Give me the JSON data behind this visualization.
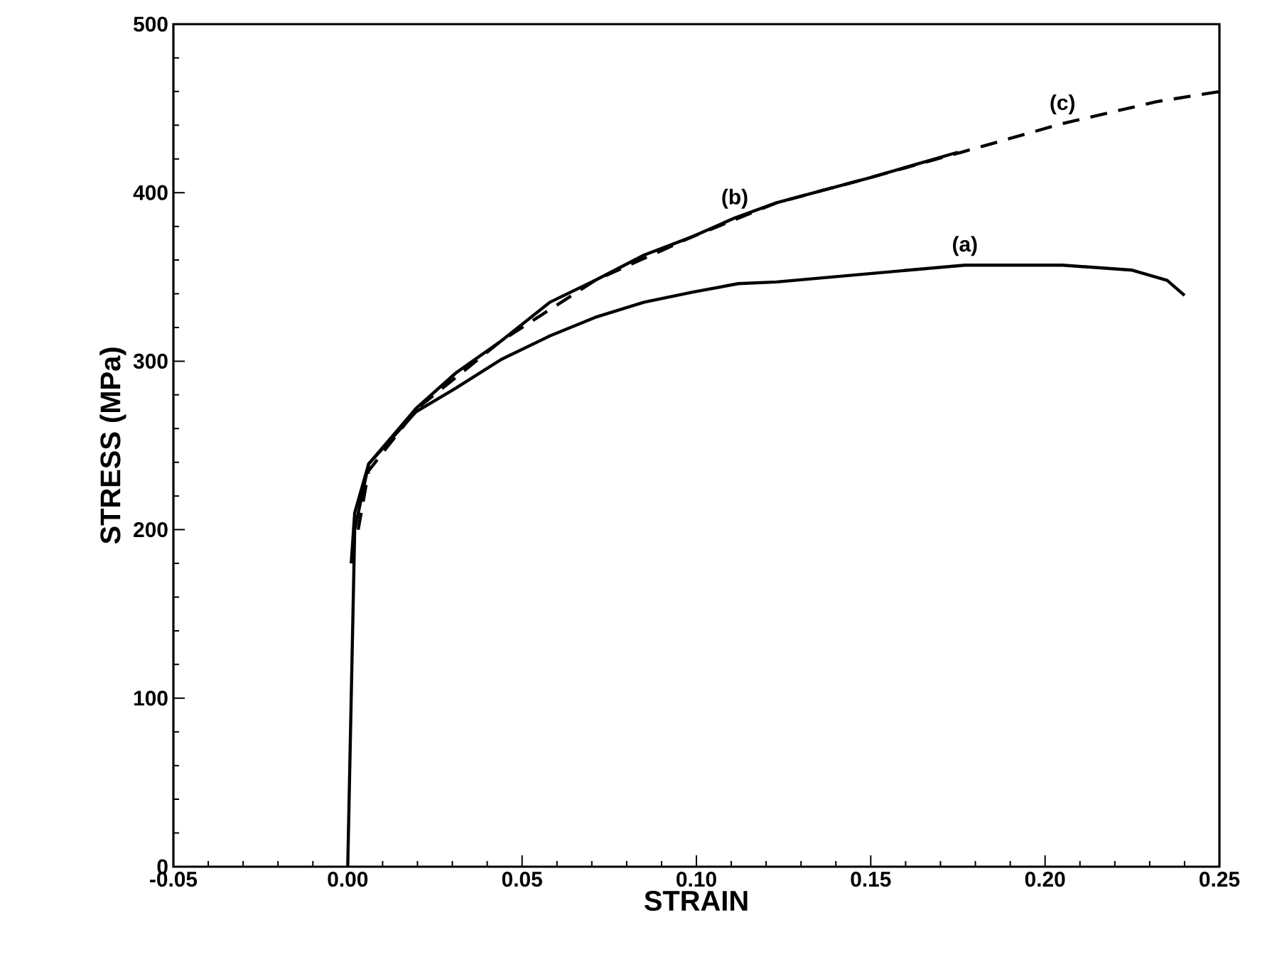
{
  "chart_data": {
    "type": "line",
    "xlabel": "STRAIN",
    "ylabel": "STRESS (MPa)",
    "xlim": [
      -0.05,
      0.25
    ],
    "ylim": [
      0,
      500
    ],
    "xticks": [
      {
        "value": -0.05,
        "label": "-0.05"
      },
      {
        "value": 0,
        "label": "0.00"
      },
      {
        "value": 0.05,
        "label": "0.05"
      },
      {
        "value": 0.1,
        "label": "0.10"
      },
      {
        "value": 0.15,
        "label": "0.15"
      },
      {
        "value": 0.2,
        "label": "0.20"
      },
      {
        "value": 0.25,
        "label": "0.25"
      }
    ],
    "yticks": [
      0,
      100,
      200,
      300,
      400,
      500
    ],
    "grid": false,
    "series": [
      {
        "name": "(a)",
        "color": "#000000",
        "line_style": "solid",
        "x": [
          0,
          0.001,
          0.002,
          0.006,
          0.0196,
          0.031,
          0.044,
          0.058,
          0.071,
          0.085,
          0.099,
          0.112,
          0.123,
          0.15,
          0.177,
          0.205,
          0.225,
          0.235,
          0.24
        ],
        "values": [
          0,
          100,
          200,
          239,
          270,
          284,
          301,
          315,
          326,
          335,
          341,
          346,
          347,
          352,
          357,
          357,
          354,
          348,
          339
        ]
      },
      {
        "name": "(b)",
        "color": "#000000",
        "line_style": "solid",
        "x": [
          0.001,
          0.002,
          0.006,
          0.0196,
          0.031,
          0.044,
          0.058,
          0.071,
          0.085,
          0.099,
          0.111,
          0.123,
          0.15,
          0.175
        ],
        "values": [
          180,
          210,
          239,
          272,
          293,
          312,
          335,
          348,
          363,
          374,
          385,
          394,
          409,
          424
        ]
      },
      {
        "name": "(c)",
        "color": "#000000",
        "line_style": "dashed",
        "x": [
          0.003,
          0.006,
          0.02,
          0.044,
          0.071,
          0.099,
          0.123,
          0.15,
          0.176,
          0.205,
          0.232,
          0.25
        ],
        "values": [
          200,
          235,
          272,
          312,
          348,
          374,
          394,
          409,
          424,
          441,
          454,
          460
        ]
      }
    ]
  }
}
